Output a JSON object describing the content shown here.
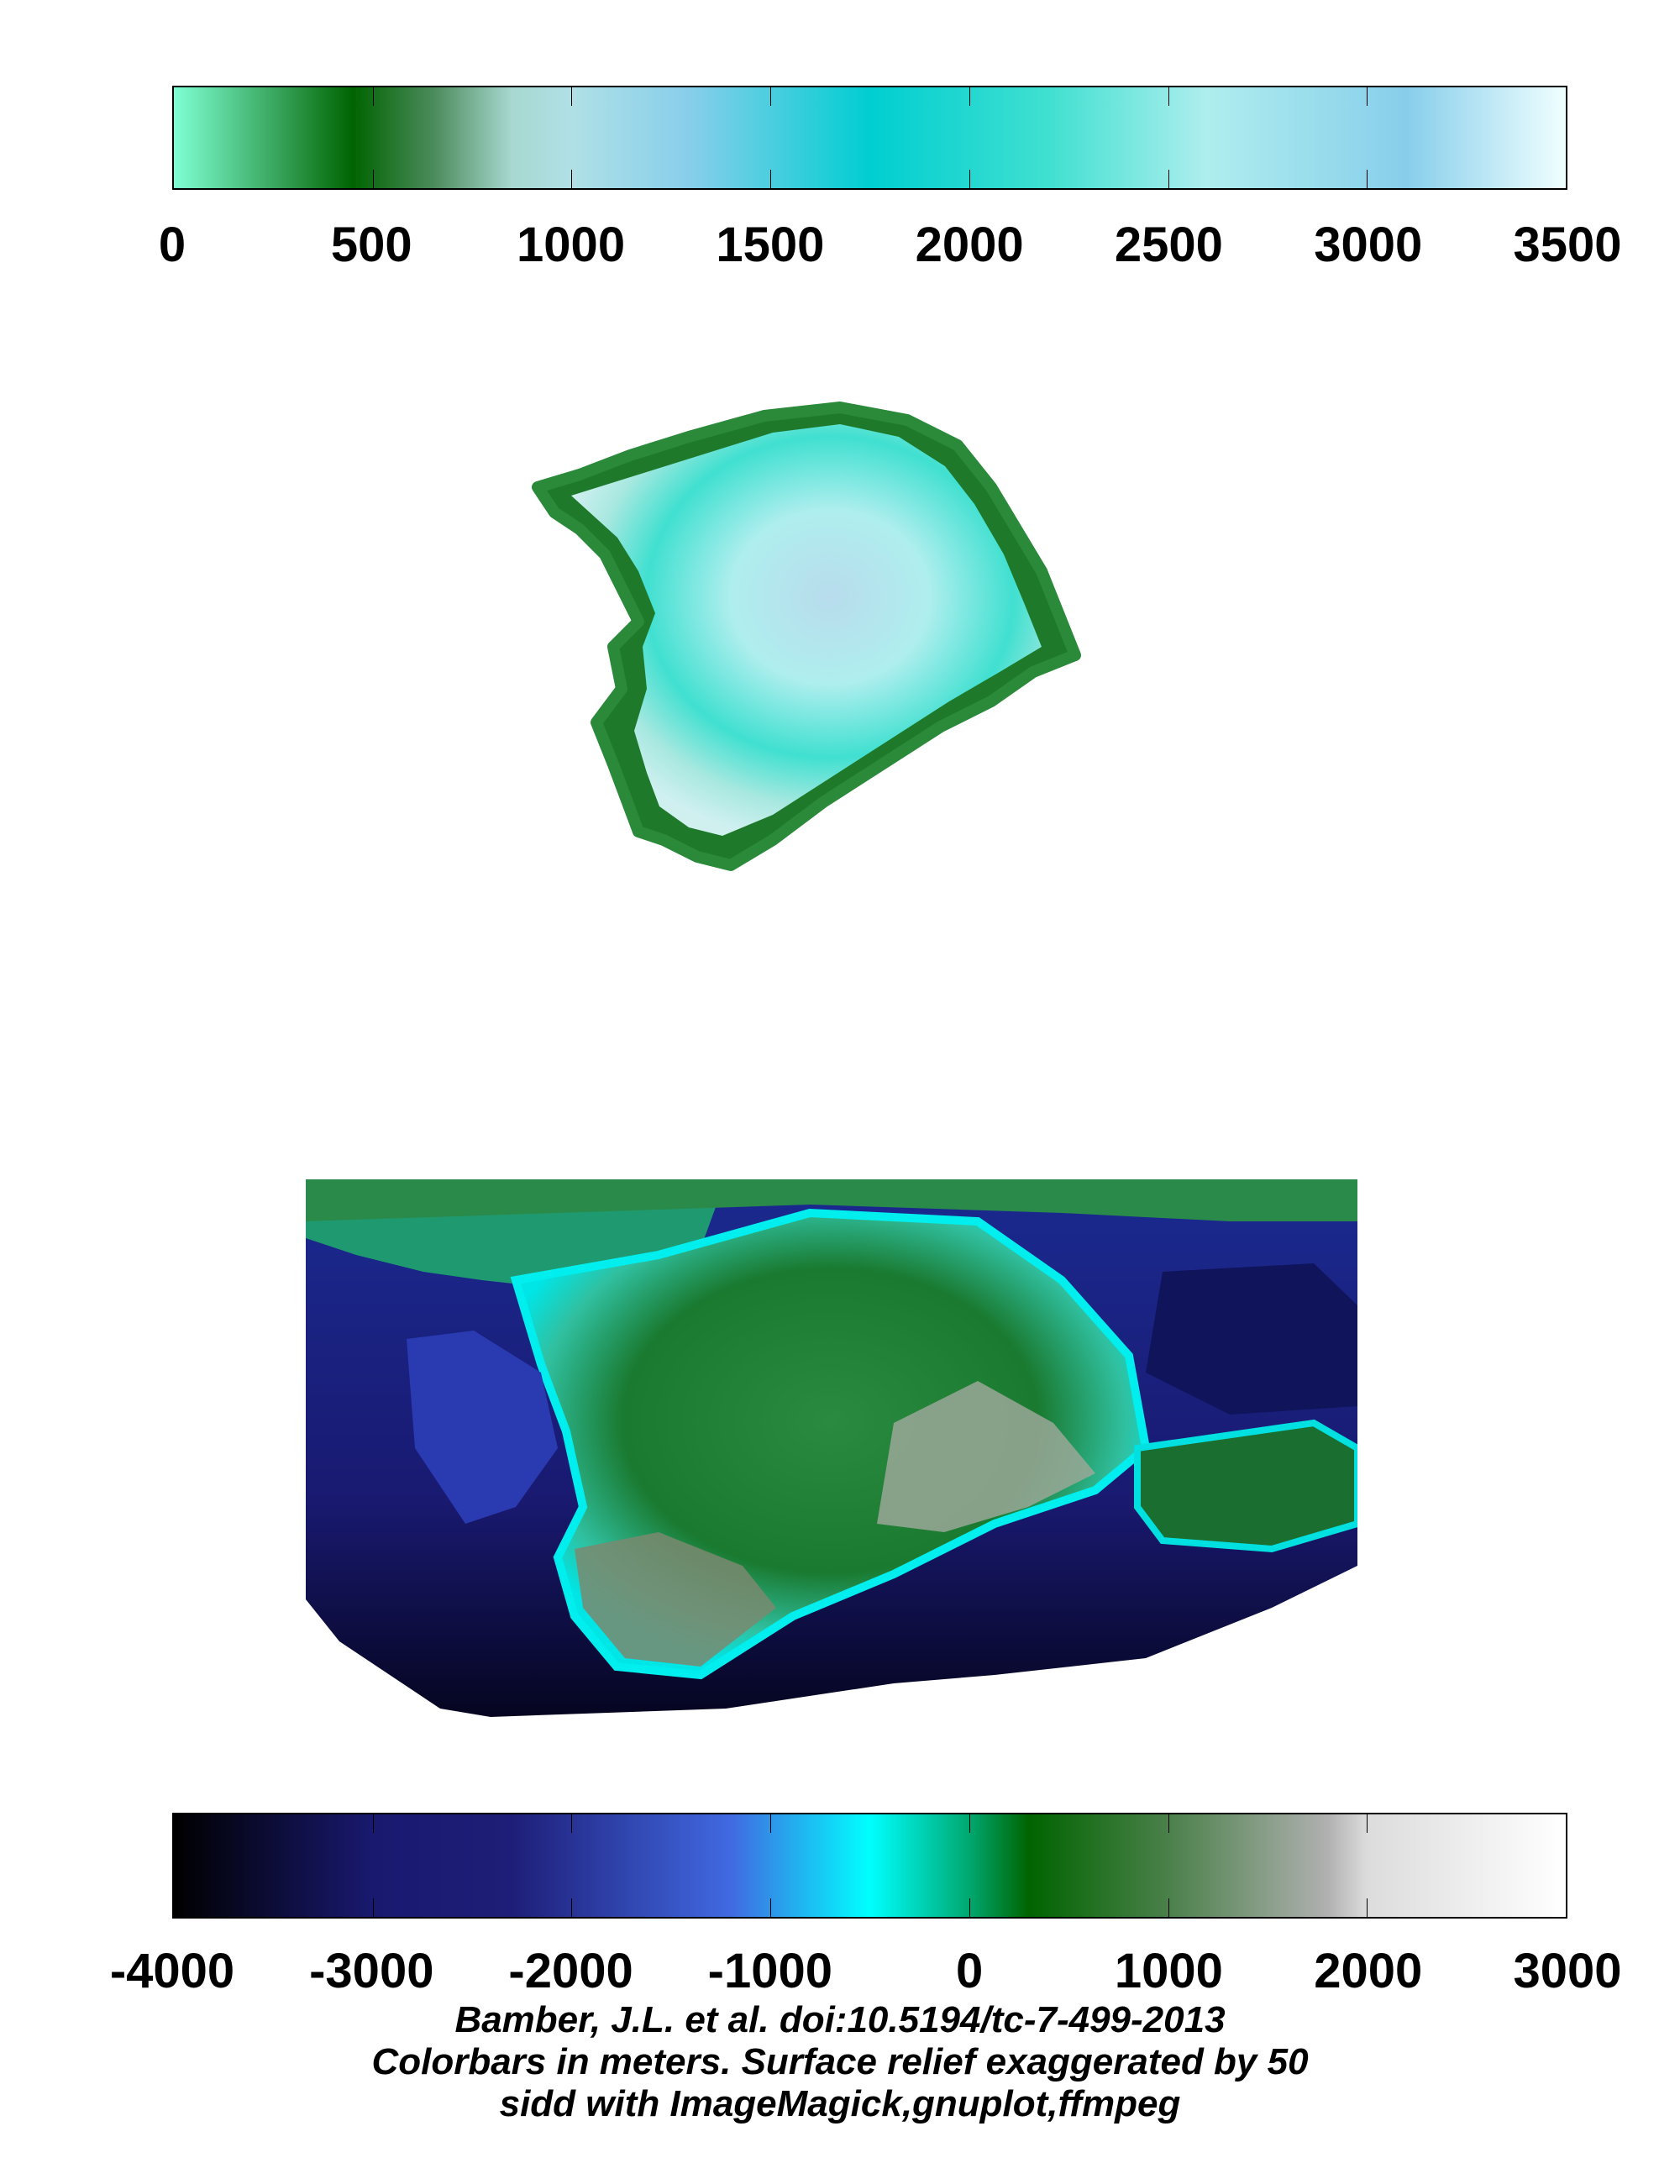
{
  "colorbar_top": {
    "ticks": [
      0,
      500,
      1000,
      1500,
      2000,
      2500,
      3000,
      3500
    ],
    "range": [
      0,
      3500
    ],
    "stops": [
      [
        0,
        "#7fffd4"
      ],
      [
        250,
        "#3aa860"
      ],
      [
        450,
        "#006400"
      ],
      [
        650,
        "#4a8a5a"
      ],
      [
        850,
        "#a8d8d0"
      ],
      [
        1000,
        "#b0e0e6"
      ],
      [
        1300,
        "#87ceeb"
      ],
      [
        1750,
        "#00ced1"
      ],
      [
        2200,
        "#40e0d0"
      ],
      [
        2600,
        "#afeeee"
      ],
      [
        3100,
        "#87ceeb"
      ],
      [
        3500,
        "#f0ffff"
      ]
    ]
  },
  "colorbar_bottom": {
    "ticks": [
      -4000,
      -3000,
      -2000,
      -1000,
      0,
      1000,
      2000,
      3000
    ],
    "range": [
      -4000,
      3000
    ],
    "stops": [
      [
        -4000,
        "#000000"
      ],
      [
        -3000,
        "#191970"
      ],
      [
        -2300,
        "#1e1e78"
      ],
      [
        -1200,
        "#4169e1"
      ],
      [
        -500,
        "#00ffff"
      ],
      [
        0,
        "#00a870"
      ],
      [
        300,
        "#006400"
      ],
      [
        1000,
        "#4a804a"
      ],
      [
        1800,
        "#b0b0b0"
      ],
      [
        2000,
        "#dcdcdc"
      ],
      [
        3000,
        "#ffffff"
      ]
    ]
  },
  "caption": {
    "line1": "Bamber, J.L. et al. doi:10.5194/tc-7-499-2013",
    "line2": "Colorbars in meters. Surface relief exaggerated by 50",
    "line3": "sidd with ImageMagick,gnuplot,ffmpeg"
  },
  "maps": {
    "surface_icons": "greenland-surface-elevation-relief",
    "bedrock_icons": "greenland-bedrock-elevation-relief"
  }
}
